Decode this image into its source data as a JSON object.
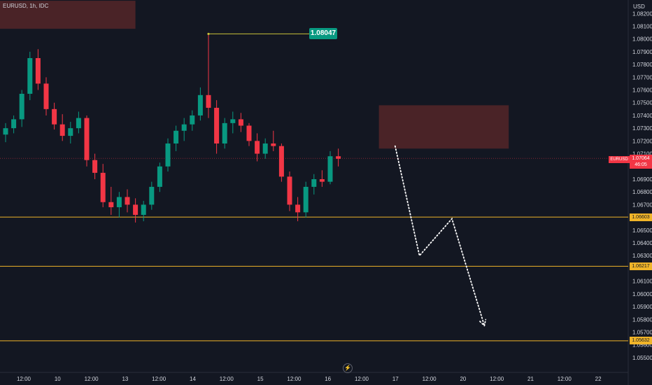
{
  "header": {
    "symbol_text": "EURUSD, 1h, IDC",
    "currency": "USD"
  },
  "icons": {
    "bolt": "lightning-icon",
    "bolt_glyph": "⚡"
  },
  "colors": {
    "background": "#131722",
    "up": "#089981",
    "down": "#f23645",
    "zone_fill": "#4a2327",
    "level_line": "#f0b429",
    "peak_line": "#c9c23a",
    "current_line": "#f23645",
    "projection": "#ffffff"
  },
  "chart_data": {
    "type": "candlestick",
    "symbol": "EURUSD",
    "interval": "1h",
    "source": "IDC",
    "currency": "USD",
    "ylim": [
      1.0545,
      1.0824
    ],
    "x_ticks": [
      "12:00",
      "10",
      "12:00",
      "13",
      "12:00",
      "14",
      "12:00",
      "15",
      "12:00",
      "16",
      "12:00",
      "17",
      "12:00",
      "20",
      "12:00",
      "21",
      "12:00",
      "22"
    ],
    "y_ticks": [
      "1.08200",
      "1.08100",
      "1.08000",
      "1.07900",
      "1.07800",
      "1.07700",
      "1.07600",
      "1.07500",
      "1.07400",
      "1.07300",
      "1.07200",
      "1.07100",
      "1.06900",
      "1.06800",
      "1.06700",
      "1.06500",
      "1.06400",
      "1.06300",
      "1.06100",
      "1.06000",
      "1.05900",
      "1.05800",
      "1.05700",
      "1.05600",
      "1.05500"
    ],
    "peak_label": "1.08047",
    "current": {
      "ticker": "EURUSD",
      "price": "1.07064",
      "countdown": "46:05",
      "value": 1.07064
    },
    "levels": [
      {
        "label": "1.06603",
        "value": 1.06603
      },
      {
        "label": "1.06217",
        "value": 1.06217
      },
      {
        "label": "1.05632",
        "value": 1.05632
      }
    ],
    "zones": [
      {
        "name": "upper-left-supply",
        "i_from": -1,
        "i_to": 16,
        "y_from": 1.0808,
        "y_to": 1.083
      },
      {
        "name": "supply",
        "i_from": 46,
        "i_to": 62,
        "y_from": 1.0714,
        "y_to": 1.0748
      }
    ],
    "projection": [
      {
        "i": 48,
        "y": 1.0716
      },
      {
        "i": 51,
        "y": 1.063
      },
      {
        "i": 55,
        "y": 1.0659
      },
      {
        "i": 59,
        "y": 1.0575
      }
    ],
    "candles": [
      {
        "o": 1.0725,
        "h": 1.0734,
        "l": 1.0719,
        "c": 1.073
      },
      {
        "o": 1.073,
        "h": 1.074,
        "l": 1.0726,
        "c": 1.0737
      },
      {
        "o": 1.0737,
        "h": 1.076,
        "l": 1.0731,
        "c": 1.0757
      },
      {
        "o": 1.0757,
        "h": 1.079,
        "l": 1.0752,
        "c": 1.0785
      },
      {
        "o": 1.0785,
        "h": 1.0792,
        "l": 1.076,
        "c": 1.0765
      },
      {
        "o": 1.0765,
        "h": 1.077,
        "l": 1.074,
        "c": 1.0745
      },
      {
        "o": 1.0745,
        "h": 1.075,
        "l": 1.0729,
        "c": 1.0733
      },
      {
        "o": 1.0733,
        "h": 1.0741,
        "l": 1.072,
        "c": 1.0724
      },
      {
        "o": 1.0724,
        "h": 1.0735,
        "l": 1.0718,
        "c": 1.073
      },
      {
        "o": 1.073,
        "h": 1.0743,
        "l": 1.0726,
        "c": 1.0738
      },
      {
        "o": 1.0738,
        "h": 1.074,
        "l": 1.07,
        "c": 1.0705
      },
      {
        "o": 1.0705,
        "h": 1.071,
        "l": 1.069,
        "c": 1.0695
      },
      {
        "o": 1.0695,
        "h": 1.0702,
        "l": 1.0668,
        "c": 1.0672
      },
      {
        "o": 1.0672,
        "h": 1.0684,
        "l": 1.0662,
        "c": 1.0668
      },
      {
        "o": 1.0668,
        "h": 1.068,
        "l": 1.066,
        "c": 1.0676
      },
      {
        "o": 1.0676,
        "h": 1.0682,
        "l": 1.0664,
        "c": 1.067
      },
      {
        "o": 1.067,
        "h": 1.0675,
        "l": 1.0656,
        "c": 1.0662
      },
      {
        "o": 1.0662,
        "h": 1.0673,
        "l": 1.0657,
        "c": 1.067
      },
      {
        "o": 1.067,
        "h": 1.0688,
        "l": 1.0666,
        "c": 1.0684
      },
      {
        "o": 1.0684,
        "h": 1.0703,
        "l": 1.068,
        "c": 1.07
      },
      {
        "o": 1.07,
        "h": 1.0722,
        "l": 1.0696,
        "c": 1.0718
      },
      {
        "o": 1.0718,
        "h": 1.0732,
        "l": 1.0712,
        "c": 1.0728
      },
      {
        "o": 1.0728,
        "h": 1.0738,
        "l": 1.072,
        "c": 1.0733
      },
      {
        "o": 1.0733,
        "h": 1.0744,
        "l": 1.0728,
        "c": 1.074
      },
      {
        "o": 1.074,
        "h": 1.0762,
        "l": 1.0736,
        "c": 1.0756
      },
      {
        "o": 1.0756,
        "h": 1.0804,
        "l": 1.0738,
        "c": 1.0746
      },
      {
        "o": 1.0746,
        "h": 1.0752,
        "l": 1.071,
        "c": 1.0718
      },
      {
        "o": 1.0718,
        "h": 1.0738,
        "l": 1.0714,
        "c": 1.0734
      },
      {
        "o": 1.0734,
        "h": 1.0743,
        "l": 1.0726,
        "c": 1.0737
      },
      {
        "o": 1.0737,
        "h": 1.0742,
        "l": 1.0727,
        "c": 1.0732
      },
      {
        "o": 1.0732,
        "h": 1.0734,
        "l": 1.0716,
        "c": 1.072
      },
      {
        "o": 1.072,
        "h": 1.0726,
        "l": 1.0704,
        "c": 1.071
      },
      {
        "o": 1.071,
        "h": 1.0722,
        "l": 1.0706,
        "c": 1.0718
      },
      {
        "o": 1.0718,
        "h": 1.0728,
        "l": 1.0712,
        "c": 1.0716
      },
      {
        "o": 1.0716,
        "h": 1.0718,
        "l": 1.0688,
        "c": 1.0692
      },
      {
        "o": 1.0692,
        "h": 1.0696,
        "l": 1.0665,
        "c": 1.067
      },
      {
        "o": 1.067,
        "h": 1.0676,
        "l": 1.0657,
        "c": 1.0664
      },
      {
        "o": 1.0664,
        "h": 1.0688,
        "l": 1.066,
        "c": 1.0684
      },
      {
        "o": 1.0684,
        "h": 1.0694,
        "l": 1.0678,
        "c": 1.069
      },
      {
        "o": 1.069,
        "h": 1.0697,
        "l": 1.0684,
        "c": 1.0688
      },
      {
        "o": 1.0688,
        "h": 1.0712,
        "l": 1.0686,
        "c": 1.0708
      },
      {
        "o": 1.0708,
        "h": 1.0714,
        "l": 1.07,
        "c": 1.0706
      }
    ]
  }
}
